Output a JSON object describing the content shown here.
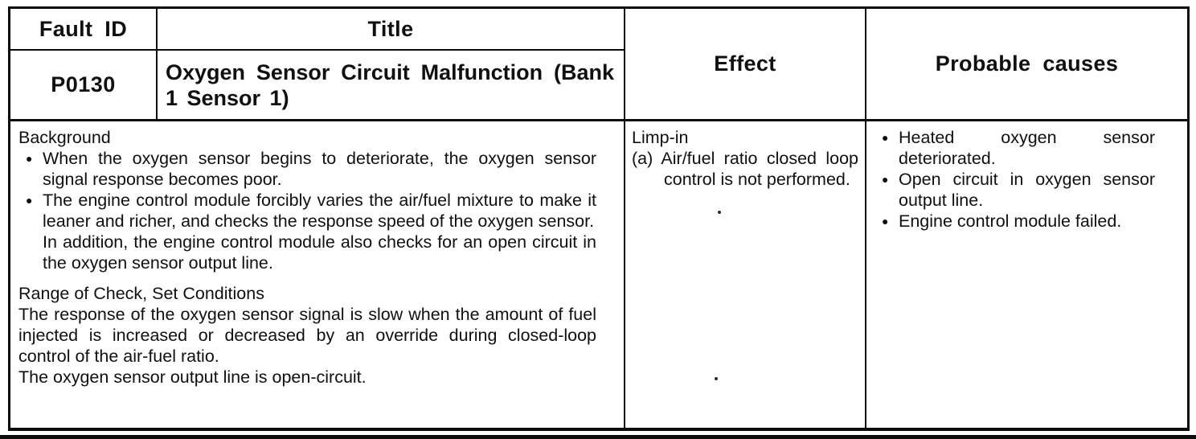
{
  "page": {
    "background_color": "#ffffff",
    "line_color": "#0c0c0c"
  },
  "table": {
    "headers": {
      "fault_id": "Fault ID",
      "title": "Title",
      "effect": "Effect",
      "probable_causes": "Probable causes"
    },
    "fault": {
      "id": "P0130",
      "title": "Oxygen Sensor Circuit Malfunction (Bank 1 Sensor 1)"
    },
    "description": {
      "background_heading": "Background",
      "background_bullet_1": "When the oxygen sensor begins to deteriorate, the oxygen sensor signal response becomes poor.",
      "background_bullet_2": "The engine control module forcibly varies the air/fuel mixture to make it leaner and richer, and checks the response speed of the oxygen sensor.",
      "background_bullet_2_note": "In addition, the engine control module also checks for an open circuit in the oxygen sensor output line.",
      "range_heading": "Range of Check, Set Conditions",
      "range_text_1": "The response of the oxygen sensor signal is slow when the amount of fuel injected is increased or decreased by an override during closed-loop control of the air-fuel ratio.",
      "range_text_2": "The oxygen sensor output line is open-circuit."
    },
    "effect": {
      "status": "Limp-in",
      "detail": "(a) Air/fuel ratio closed loop control is not performed."
    },
    "probable_causes": [
      "Heated oxygen sensor deteriorated.",
      "Open circuit in oxygen sensor output line.",
      "Engine control module failed."
    ],
    "bullet_glyph": "●"
  }
}
